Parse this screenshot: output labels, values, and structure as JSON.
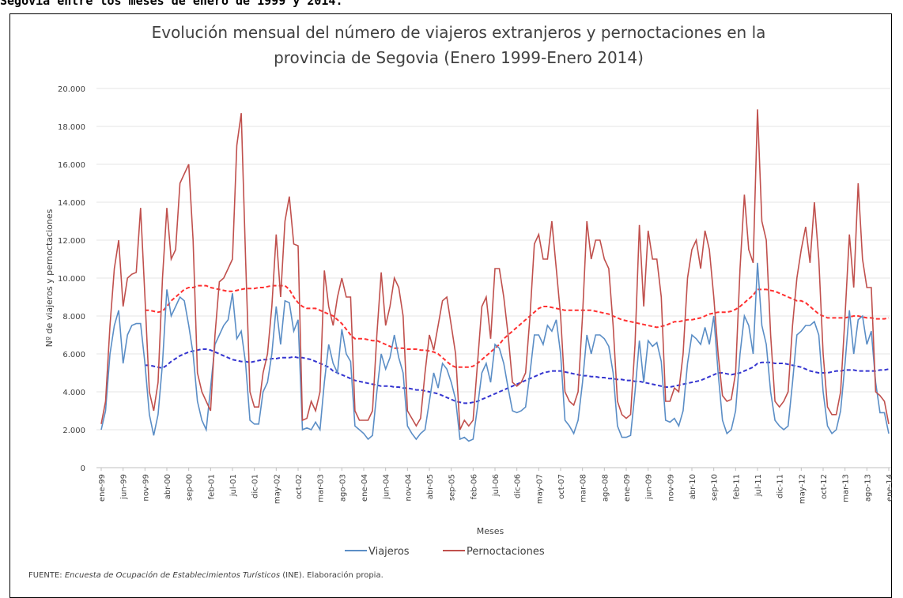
{
  "caption": "Segovia entre los meses de enero de 1999 y 2014.",
  "chart_data": {
    "type": "line",
    "title": [
      "Evolución mensual del número de viajeros extranjeros y pernoctaciones en la",
      "provincia de Segovia (Enero 1999-Enero 2014)"
    ],
    "y_label": "Nº de viajeros y pernoctaciones",
    "x_label": "Meses",
    "categories": [
      "ene-99",
      null,
      null,
      null,
      null,
      "jun-99",
      null,
      null,
      null,
      null,
      "nov-99",
      null,
      null,
      null,
      null,
      "abr-00",
      null,
      null,
      null,
      null,
      "sep-00",
      null,
      null,
      null,
      null,
      "feb-01",
      null,
      null,
      null,
      null,
      "jul-01",
      null,
      null,
      null,
      null,
      "dic-01",
      null,
      null,
      null,
      null,
      "may-02",
      null,
      null,
      null,
      null,
      "oct-02",
      null,
      null,
      null,
      null,
      "mar-03",
      null,
      null,
      null,
      null,
      "ago-03",
      null,
      null,
      null,
      null,
      "ene-04",
      null,
      null,
      null,
      null,
      "jun-04",
      null,
      null,
      null,
      null,
      "nov-04",
      null,
      null,
      null,
      null,
      "abr-05",
      null,
      null,
      null,
      null,
      "sep-05",
      null,
      null,
      null,
      null,
      "feb-06",
      null,
      null,
      null,
      null,
      "jul-06",
      null,
      null,
      null,
      null,
      "dic-06",
      null,
      null,
      null,
      null,
      "may-07",
      null,
      null,
      null,
      null,
      "oct-07",
      null,
      null,
      null,
      null,
      "mar-08",
      null,
      null,
      null,
      null,
      "ago-08",
      null,
      null,
      null,
      null,
      "ene-09",
      null,
      null,
      null,
      null,
      "jun-09",
      null,
      null,
      null,
      null,
      "nov-09",
      null,
      null,
      null,
      null,
      "abr-10",
      null,
      null,
      null,
      null,
      "sep-10",
      null,
      null,
      null,
      null,
      "feb-11",
      null,
      null,
      null,
      null,
      "jul-11",
      null,
      null,
      null,
      null,
      "dic-11",
      null,
      null,
      null,
      null,
      "may-12",
      null,
      null,
      null,
      null,
      "oct-12",
      null,
      null,
      null,
      null,
      "mar-13",
      null,
      null,
      null,
      null,
      "ago-13",
      null,
      null,
      null,
      null,
      "ene-14"
    ],
    "series": [
      {
        "name": "Viajeros",
        "color": "#5b8ec6",
        "values": [
          2000,
          3000,
          6000,
          7500,
          8300,
          5500,
          7000,
          7500,
          7600,
          7600,
          5500,
          2800,
          1700,
          2800,
          5500,
          9400,
          8000,
          8500,
          9000,
          8800,
          7500,
          6000,
          3500,
          2500,
          2000,
          4200,
          6500,
          7000,
          7500,
          7800,
          9200,
          6800,
          7200,
          5500,
          2500,
          2300,
          2300,
          4000,
          4500,
          6000,
          8500,
          6500,
          8800,
          8700,
          7200,
          7800,
          2000,
          2100,
          2000,
          2400,
          2000,
          4500,
          6500,
          5500,
          5000,
          7300,
          6000,
          5600,
          2200,
          2000,
          1800,
          1500,
          1700,
          4000,
          6000,
          5200,
          5800,
          7000,
          5800,
          5000,
          2200,
          1800,
          1500,
          1800,
          2000,
          3500,
          5000,
          4200,
          5500,
          5200,
          4500,
          3600,
          1500,
          1600,
          1400,
          1500,
          3200,
          5000,
          5500,
          4500,
          6500,
          6300,
          5500,
          4200,
          3000,
          2900,
          3000,
          3200,
          5000,
          7000,
          7000,
          6500,
          7500,
          7200,
          7800,
          6000,
          2500,
          2200,
          1800,
          2500,
          4500,
          7000,
          6000,
          7000,
          7000,
          6800,
          6400,
          5000,
          2200,
          1600,
          1600,
          1700,
          4000,
          6700,
          4500,
          6700,
          6400,
          6600,
          5600,
          2500,
          2400,
          2600,
          2200,
          3000,
          5500,
          7000,
          6800,
          6500,
          7400,
          6500,
          8000,
          5000,
          2500,
          1800,
          2000,
          3000,
          6000,
          8000,
          7500,
          6000,
          10800,
          7500,
          6500,
          4000,
          2500,
          2200,
          2000,
          2200,
          4500,
          7000,
          7200,
          7500,
          7500,
          7700,
          7000,
          4000,
          2200,
          1800,
          2000,
          3000,
          5500,
          8300,
          6000,
          7800,
          8000,
          6500,
          7200,
          4500,
          2900,
          2900,
          1800
        ]
      },
      {
        "name": "Pernoctaciones",
        "color": "#c0504d",
        "values": [
          2300,
          3500,
          7500,
          10500,
          12000,
          8500,
          10000,
          10200,
          10300,
          13700,
          9000,
          4000,
          3000,
          4500,
          10000,
          13700,
          11000,
          11500,
          15000,
          15500,
          16000,
          12000,
          5000,
          4000,
          3500,
          3000,
          7000,
          9800,
          10000,
          10500,
          11000,
          17000,
          18700,
          11000,
          4000,
          3200,
          3200,
          5000,
          6000,
          8500,
          12300,
          9000,
          13000,
          14300,
          11800,
          11700,
          2500,
          2600,
          3500,
          3000,
          4000,
          10400,
          8500,
          7500,
          9000,
          10000,
          9000,
          9000,
          3000,
          2500,
          2500,
          2500,
          3000,
          7000,
          10300,
          7500,
          8500,
          10000,
          9500,
          8000,
          3000,
          2600,
          2200,
          2600,
          5000,
          7000,
          6200,
          7500,
          8800,
          9000,
          7500,
          6000,
          2000,
          2500,
          2200,
          2500,
          5500,
          8500,
          9000,
          6800,
          10500,
          10500,
          9000,
          7000,
          4500,
          4300,
          4500,
          5000,
          8000,
          11800,
          12300,
          11000,
          11000,
          13000,
          10500,
          8000,
          4000,
          3500,
          3300,
          4000,
          8000,
          13000,
          11000,
          12000,
          12000,
          11000,
          10500,
          7500,
          3500,
          2800,
          2600,
          2800,
          6500,
          12800,
          8500,
          12500,
          11000,
          11000,
          9000,
          3500,
          3500,
          4200,
          4000,
          6000,
          10000,
          11500,
          12000,
          10500,
          12500,
          11500,
          9000,
          6000,
          3800,
          3500,
          3600,
          5000,
          10500,
          14400,
          11500,
          10800,
          18900,
          13000,
          12000,
          7000,
          3500,
          3200,
          3500,
          4000,
          7500,
          10000,
          11500,
          12700,
          10800,
          14000,
          11000,
          6000,
          3200,
          2800,
          2800,
          4000,
          8000,
          12300,
          9500,
          15000,
          11000,
          9500,
          9500,
          4000,
          3800,
          3500,
          2300
        ]
      }
    ],
    "trends": [
      {
        "color": "#3535d0",
        "dashed": true,
        "values": [
          null,
          null,
          null,
          null,
          null,
          null,
          null,
          null,
          null,
          null,
          5400,
          5400,
          5350,
          5300,
          5250,
          5400,
          5600,
          5750,
          5900,
          6000,
          6100,
          6150,
          6200,
          6250,
          6250,
          6200,
          6100,
          6000,
          5900,
          5800,
          5700,
          5650,
          5600,
          5600,
          5550,
          5600,
          5650,
          5700,
          5700,
          5750,
          5750,
          5800,
          5800,
          5800,
          5850,
          5800,
          5800,
          5750,
          5700,
          5600,
          5500,
          5400,
          5300,
          5100,
          5000,
          4900,
          4800,
          4700,
          4600,
          4550,
          4500,
          4450,
          4400,
          4350,
          4300,
          4300,
          4300,
          4250,
          4250,
          4200,
          4200,
          4150,
          4100,
          4100,
          4050,
          4000,
          3950,
          3900,
          3800,
          3700,
          3600,
          3500,
          3450,
          3400,
          3400,
          3450,
          3500,
          3600,
          3700,
          3800,
          3900,
          4000,
          4100,
          4200,
          4300,
          4400,
          4500,
          4600,
          4700,
          4800,
          4900,
          5000,
          5050,
          5100,
          5100,
          5100,
          5050,
          5000,
          4950,
          4900,
          4850,
          4850,
          4800,
          4800,
          4750,
          4750,
          4700,
          4700,
          4650,
          4650,
          4600,
          4600,
          4550,
          4550,
          4500,
          4450,
          4400,
          4350,
          4300,
          4250,
          4250,
          4300,
          4350,
          4400,
          4450,
          4500,
          4550,
          4600,
          4700,
          4800,
          4900,
          5000,
          5000,
          4950,
          4900,
          4950,
          5000,
          5100,
          5200,
          5300,
          5500,
          5550,
          5550,
          5550,
          5500,
          5500,
          5500,
          5450,
          5400,
          5350,
          5300,
          5200,
          5100,
          5050,
          5000,
          5000,
          5000,
          5050,
          5100,
          5100,
          5150,
          5150,
          5150,
          5100,
          5100,
          5100,
          5100,
          5100,
          5150,
          5150,
          5200
        ]
      },
      {
        "color": "#ff3030",
        "dashed": true,
        "values": [
          null,
          null,
          null,
          null,
          null,
          null,
          null,
          null,
          null,
          null,
          8300,
          8300,
          8250,
          8200,
          8250,
          8500,
          8800,
          9000,
          9200,
          9400,
          9500,
          9500,
          9600,
          9600,
          9600,
          9500,
          9450,
          9400,
          9350,
          9300,
          9300,
          9350,
          9400,
          9450,
          9450,
          9450,
          9500,
          9500,
          9550,
          9600,
          9600,
          9600,
          9600,
          9400,
          9000,
          8700,
          8500,
          8400,
          8400,
          8400,
          8300,
          8200,
          8100,
          8000,
          7800,
          7600,
          7300,
          7000,
          6800,
          6800,
          6800,
          6750,
          6700,
          6700,
          6600,
          6500,
          6400,
          6300,
          6300,
          6300,
          6250,
          6250,
          6250,
          6200,
          6200,
          6150,
          6100,
          6000,
          5800,
          5600,
          5400,
          5300,
          5300,
          5300,
          5300,
          5350,
          5500,
          5700,
          5900,
          6100,
          6300,
          6500,
          6800,
          7000,
          7200,
          7400,
          7600,
          7800,
          8000,
          8200,
          8400,
          8500,
          8500,
          8450,
          8400,
          8350,
          8300,
          8300,
          8300,
          8300,
          8300,
          8300,
          8300,
          8250,
          8200,
          8150,
          8100,
          8000,
          7900,
          7800,
          7750,
          7700,
          7650,
          7600,
          7550,
          7500,
          7450,
          7400,
          7450,
          7500,
          7600,
          7700,
          7700,
          7750,
          7800,
          7800,
          7850,
          7900,
          8000,
          8100,
          8150,
          8200,
          8200,
          8200,
          8250,
          8350,
          8500,
          8700,
          8900,
          9100,
          9400,
          9400,
          9400,
          9350,
          9300,
          9200,
          9100,
          9000,
          8900,
          8800,
          8800,
          8700,
          8500,
          8300,
          8100,
          8000,
          7900,
          7900,
          7900,
          7900,
          7900,
          7950,
          8000,
          8000,
          7950,
          7900,
          7900,
          7850,
          7850,
          7850,
          7900
        ]
      }
    ],
    "ylim": [
      0,
      20000
    ],
    "yticks": [
      0,
      {
        "value": 2000,
        "label": "2.000"
      },
      {
        "value": 4000,
        "label": "4.000"
      },
      {
        "value": 6000,
        "label": "6.000"
      },
      {
        "value": 8000,
        "label": "8.000"
      },
      {
        "value": 10000,
        "label": "10.000"
      },
      {
        "value": 12000,
        "label": "12.000"
      },
      {
        "value": 14000,
        "label": "14.000"
      },
      {
        "value": 16000,
        "label": "16.000"
      },
      {
        "value": 18000,
        "label": "18.000"
      },
      {
        "value": 20000,
        "label": "20.000"
      }
    ],
    "grid": true,
    "legend": "bottom"
  },
  "source": {
    "label": "FUENTE:",
    "title": "Encuesta de Ocupación de Establecimientos Turísticos",
    "rest": "(INE). Elaboración propia."
  }
}
